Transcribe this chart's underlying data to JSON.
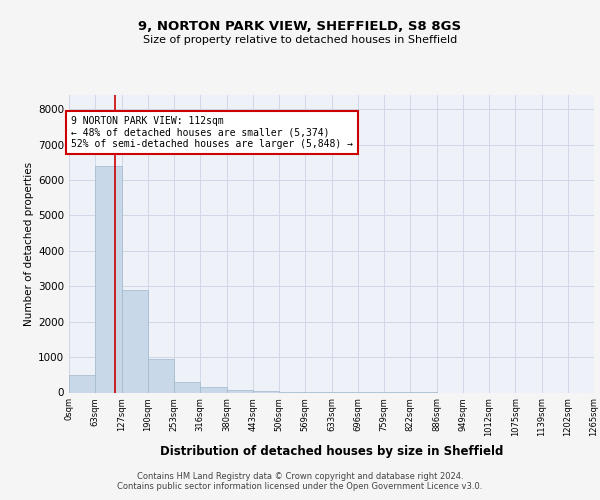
{
  "title1": "9, NORTON PARK VIEW, SHEFFIELD, S8 8GS",
  "title2": "Size of property relative to detached houses in Sheffield",
  "xlabel": "Distribution of detached houses by size in Sheffield",
  "ylabel": "Number of detached properties",
  "annotation_line1": "9 NORTON PARK VIEW: 112sqm",
  "annotation_line2": "← 48% of detached houses are smaller (5,374)",
  "annotation_line3": "52% of semi-detached houses are larger (5,848) →",
  "property_size": 112,
  "bar_edges": [
    0,
    63,
    127,
    190,
    253,
    316,
    380,
    443,
    506,
    569,
    633,
    696,
    759,
    822,
    886,
    949,
    1012,
    1075,
    1139,
    1202,
    1265
  ],
  "bar_heights": [
    500,
    6400,
    2900,
    950,
    300,
    150,
    75,
    50,
    15,
    8,
    4,
    2,
    1,
    1,
    0,
    0,
    0,
    0,
    0,
    0
  ],
  "bar_color": "#c8d8e8",
  "bar_edge_color": "#a0b8cc",
  "red_line_color": "#cc0000",
  "annotation_box_edge": "#cc0000",
  "annotation_box_face": "#ffffff",
  "grid_color": "#d0d8e8",
  "background_color": "#eef2f8",
  "fig_background": "#f5f5f5",
  "ylim": [
    0,
    8400
  ],
  "yticks": [
    0,
    1000,
    2000,
    3000,
    4000,
    5000,
    6000,
    7000,
    8000
  ],
  "tick_labels": [
    "0sqm",
    "63sqm",
    "127sqm",
    "190sqm",
    "253sqm",
    "316sqm",
    "380sqm",
    "443sqm",
    "506sqm",
    "569sqm",
    "633sqm",
    "696sqm",
    "759sqm",
    "822sqm",
    "886sqm",
    "949sqm",
    "1012sqm",
    "1075sqm",
    "1139sqm",
    "1202sqm",
    "1265sqm"
  ],
  "footer": "Contains HM Land Registry data © Crown copyright and database right 2024.\nContains public sector information licensed under the Open Government Licence v3.0."
}
